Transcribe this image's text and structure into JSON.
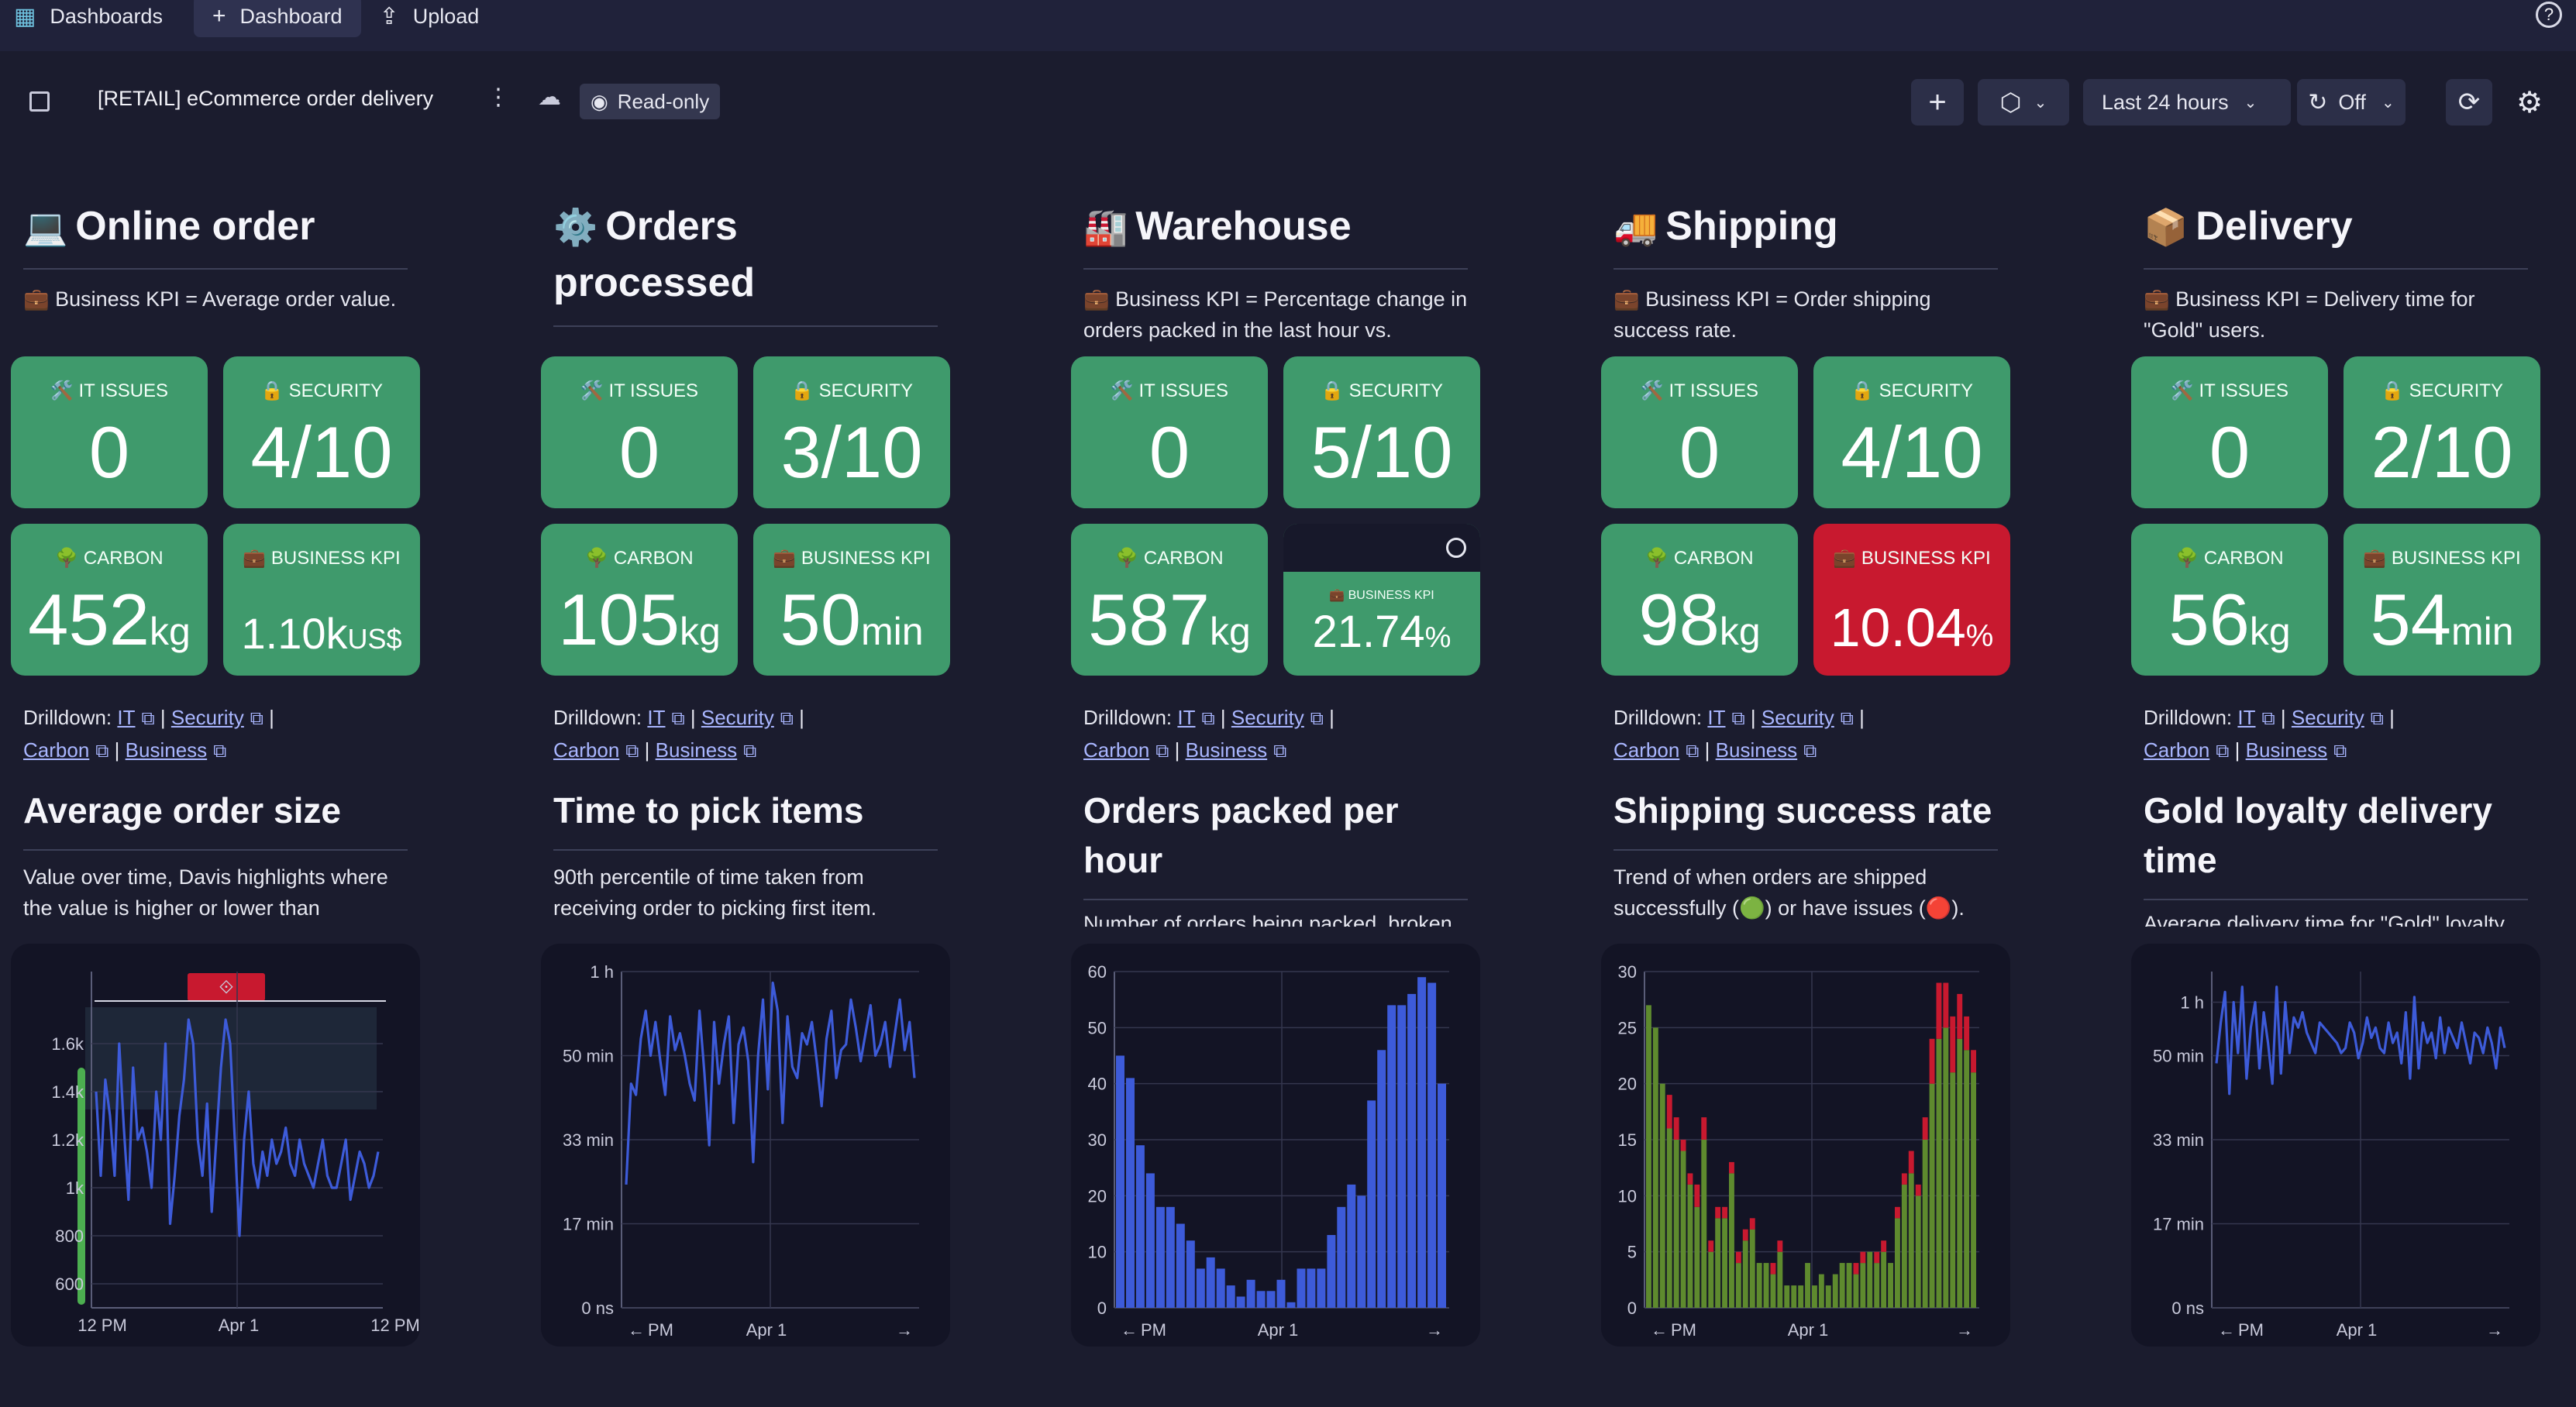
{
  "topbar": {
    "dashboards_label": "Dashboards",
    "dashboard_label": "Dashboard",
    "upload_label": "Upload",
    "help_label": "?"
  },
  "header": {
    "title": "[RETAIL] eCommerce order delivery",
    "readonly_label": "Read-only",
    "timeframe_label": "Last 24 hours",
    "refresh_label": "Off"
  },
  "columns": [
    {
      "emoji": "💻",
      "title": "Online order",
      "desc": "💼 Business KPI = Average order value.",
      "tiles": [
        {
          "label": "🛠️ IT ISSUES",
          "value": "0",
          "unit": ""
        },
        {
          "label": "🔒 SECURITY",
          "value": "4/10",
          "unit": ""
        },
        {
          "label": "🌳 CARBON",
          "value": "452",
          "unit": "kg"
        },
        {
          "label": "💼 BUSINESS KPI",
          "value": "1.10k",
          "unit": "US$"
        }
      ],
      "sub_title": "Average order size",
      "sub_desc": "Value over time, Davis highlights where the value is higher or lower than"
    },
    {
      "emoji": "⚙️",
      "title": "Orders processed",
      "desc": "",
      "tiles": [
        {
          "label": "🛠️ IT ISSUES",
          "value": "0",
          "unit": ""
        },
        {
          "label": "🔒 SECURITY",
          "value": "3/10",
          "unit": ""
        },
        {
          "label": "🌳 CARBON",
          "value": "105",
          "unit": "kg"
        },
        {
          "label": "💼 BUSINESS KPI",
          "value": "50",
          "unit": "min"
        }
      ],
      "sub_title": "Time to pick items",
      "sub_desc": "90th percentile of time taken from receiving order to picking first item."
    },
    {
      "emoji": "🏭",
      "title": "Warehouse",
      "desc": "💼 Business KPI = Percentage change in orders packed in the last hour vs.",
      "tiles": [
        {
          "label": "🛠️ IT ISSUES",
          "value": "0",
          "unit": ""
        },
        {
          "label": "🔒 SECURITY",
          "value": "5/10",
          "unit": ""
        },
        {
          "label": "🌳 CARBON",
          "value": "587",
          "unit": "kg"
        },
        {
          "label": "💼 BUSINESS KPI",
          "value": "21.74",
          "unit": "%"
        }
      ],
      "sub_title": "Orders packed per hour",
      "sub_desc": "Number of orders being packed, broken"
    },
    {
      "emoji": "🚚",
      "title": "Shipping",
      "desc": "💼 Business KPI = Order shipping success rate.",
      "tiles": [
        {
          "label": "🛠️ IT ISSUES",
          "value": "0",
          "unit": ""
        },
        {
          "label": "🔒 SECURITY",
          "value": "4/10",
          "unit": ""
        },
        {
          "label": "🌳 CARBON",
          "value": "98",
          "unit": "kg"
        },
        {
          "label": "💼 BUSINESS KPI",
          "value": "10.04",
          "unit": "%"
        }
      ],
      "sub_title": "Shipping success rate",
      "sub_desc": "Trend of when orders are shipped successfully (🟢) or have issues (🔴)."
    },
    {
      "emoji": "📦",
      "title": "Delivery",
      "desc": "💼 Business KPI = Delivery time for \"Gold\" users.",
      "tiles": [
        {
          "label": "🛠️ IT ISSUES",
          "value": "0",
          "unit": ""
        },
        {
          "label": "🔒 SECURITY",
          "value": "2/10",
          "unit": ""
        },
        {
          "label": "🌳 CARBON",
          "value": "56",
          "unit": "kg"
        },
        {
          "label": "💼 BUSINESS KPI",
          "value": "54",
          "unit": "min"
        }
      ],
      "sub_title": "Gold loyalty delivery time",
      "sub_desc": "Average delivery time for \"Gold\" loyalty"
    }
  ],
  "drilldown": {
    "prefix": "Drilldown:",
    "it": "IT",
    "security": "Security",
    "carbon": "Carbon",
    "business": "Business",
    "sep": "|"
  },
  "colors": {
    "tile_green": "#3f9a6c",
    "tile_red": "#c8192f",
    "series_blue": "#3d5bd9",
    "bar_green": "#5e8a2e",
    "bar_red": "#c8192f",
    "anomaly_band": "#4caf50"
  },
  "chart_data": [
    {
      "type": "line",
      "title": "Average order size",
      "y_ticks": [
        "600",
        "800",
        "1k",
        "1.2k",
        "1.4k",
        "1.6k"
      ],
      "ylim": [
        500,
        1900
      ],
      "x_ticks": [
        "12 PM",
        "Apr 1",
        "12 PM"
      ],
      "series": [
        {
          "name": "Average order size",
          "values": [
            1400,
            1050,
            1450,
            1300,
            1050,
            1600,
            1250,
            950,
            1500,
            1200,
            1250,
            1150,
            1000,
            1400,
            1200,
            1600,
            850,
            1050,
            1300,
            1450,
            1700,
            1600,
            1200,
            1050,
            1350,
            900,
            1200,
            1500,
            1700,
            1600,
            1200,
            800,
            1200,
            1400,
            1100,
            1000,
            1150,
            1050,
            1200,
            1100,
            1150,
            1250,
            1100,
            1050,
            1200,
            1100,
            1050,
            1000,
            1100,
            1200,
            1050,
            1000,
            1000,
            1100,
            1200,
            950,
            1050,
            1150,
            1100,
            1000,
            1050,
            1150
          ]
        }
      ]
    },
    {
      "type": "line",
      "title": "Time to pick items",
      "y_ticks": [
        "0 ns",
        "17 min",
        "33 min",
        "50 min",
        "1 h"
      ],
      "ylim": [
        0,
        60
      ],
      "x_ticks": [
        "PM",
        "Apr 1"
      ],
      "series": [
        {
          "name": "Time to pick items",
          "values": [
            22,
            40,
            38,
            48,
            53,
            45,
            51,
            44,
            38,
            52,
            46,
            49,
            45,
            40,
            37,
            53,
            42,
            29,
            51,
            40,
            47,
            52,
            33,
            47,
            50,
            44,
            26,
            45,
            55,
            39,
            58,
            53,
            33,
            52,
            43,
            41,
            49,
            47,
            51,
            44,
            36,
            48,
            53,
            41,
            46,
            47,
            55,
            50,
            44,
            49,
            54,
            45,
            47,
            51,
            43,
            49,
            55,
            46,
            51,
            41
          ]
        }
      ]
    },
    {
      "type": "bar",
      "title": "Orders packed per hour",
      "y_ticks": [
        "0",
        "10",
        "20",
        "30",
        "40",
        "50",
        "60"
      ],
      "ylim": [
        0,
        60
      ],
      "x_ticks": [
        "PM",
        "Apr 1"
      ],
      "series": [
        {
          "name": "Orders packed",
          "values": [
            45,
            41,
            29,
            24,
            18,
            18,
            15,
            12,
            7,
            9,
            7,
            4,
            2,
            5,
            3,
            3,
            5,
            1,
            7,
            7,
            7,
            13,
            18,
            22,
            20,
            37,
            46,
            54,
            54,
            56,
            59,
            58,
            40
          ]
        }
      ]
    },
    {
      "type": "bar",
      "title": "Shipping success rate",
      "stacked": true,
      "y_ticks": [
        "0",
        "5",
        "10",
        "15",
        "20",
        "25",
        "30"
      ],
      "ylim": [
        0,
        30
      ],
      "x_ticks": [
        "PM",
        "Apr 1"
      ],
      "series": [
        {
          "name": "Success",
          "values": [
            27,
            25,
            20,
            16,
            15,
            14,
            11,
            9,
            15,
            5,
            8,
            8,
            12,
            4,
            6,
            7,
            4,
            4,
            3,
            5,
            2,
            2,
            2,
            4,
            2,
            3,
            2,
            3,
            4,
            4,
            3,
            4,
            5,
            4,
            5,
            4,
            8,
            11,
            12,
            10,
            15,
            20,
            24,
            25,
            21,
            24,
            23,
            21
          ]
        },
        {
          "name": "Issues",
          "values": [
            0,
            0,
            0,
            3,
            2,
            1,
            1,
            2,
            2,
            1,
            1,
            1,
            1,
            1,
            1,
            1,
            0,
            0,
            1,
            1,
            0,
            0,
            0,
            0,
            0,
            0,
            0,
            0,
            0,
            0,
            1,
            1,
            0,
            1,
            1,
            0,
            1,
            1,
            2,
            1,
            2,
            4,
            5,
            4,
            5,
            4,
            3,
            2
          ]
        }
      ]
    },
    {
      "type": "line",
      "title": "Gold loyalty delivery time",
      "y_ticks": [
        "0 ns",
        "17 min",
        "33 min",
        "50 min",
        "1 h"
      ],
      "ylim": [
        0,
        66
      ],
      "x_ticks": [
        "PM",
        "Apr 1"
      ],
      "series": [
        {
          "name": "Gold loyalty delivery time",
          "values": [
            48,
            56,
            62,
            42,
            60,
            50,
            63,
            45,
            55,
            60,
            47,
            58,
            52,
            44,
            63,
            46,
            60,
            50,
            57,
            55,
            58,
            54,
            52,
            50,
            56,
            55,
            54,
            53,
            52,
            50,
            51,
            56,
            54,
            49,
            52,
            57,
            53,
            55,
            51,
            50,
            56,
            52,
            54,
            48,
            58,
            45,
            61,
            47,
            56,
            52,
            54,
            49,
            57,
            50,
            55,
            53,
            51,
            56,
            52,
            48,
            54,
            53,
            50,
            55,
            52,
            47,
            55,
            51
          ]
        }
      ]
    }
  ]
}
